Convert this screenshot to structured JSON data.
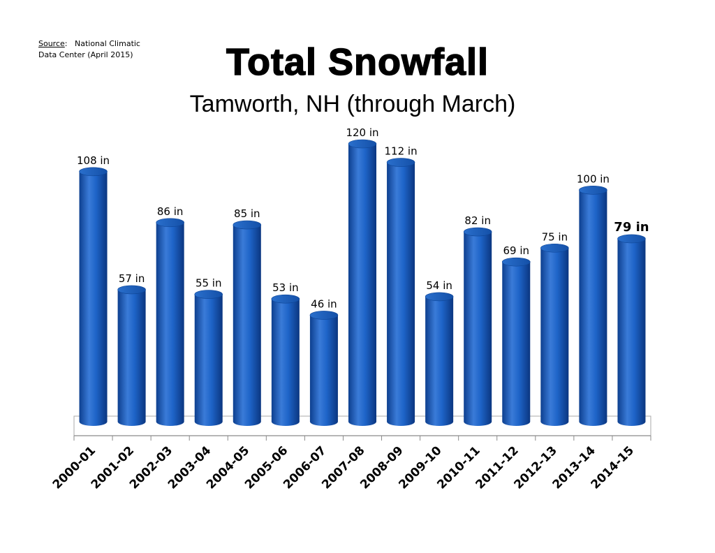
{
  "source": {
    "label": "Source",
    "line1": "National Climatic",
    "line2": "Data Center  (April 2015)"
  },
  "chart_data": {
    "type": "bar",
    "title": "Total Snowfall",
    "subtitle": "Tamworth, NH (through March)",
    "categories": [
      "2000-01",
      "2001-02",
      "2002-03",
      "2003-04",
      "2004-05",
      "2005-06",
      "2006-07",
      "2007-08",
      "2008-09",
      "2009-10",
      "2010-11",
      "2011-12",
      "2012-13",
      "2013-14",
      "2014-15"
    ],
    "values": [
      108,
      57,
      86,
      55,
      85,
      53,
      46,
      120,
      112,
      54,
      82,
      69,
      75,
      100,
      79
    ],
    "data_labels": [
      "108 in",
      "57 in",
      "86 in",
      "55 in",
      "85 in",
      "53 in",
      "46 in",
      "120 in",
      "112 in",
      "54 in",
      "82 in",
      "69 in",
      "75 in",
      "100 in",
      "79 in"
    ],
    "highlight_index": 14,
    "ylim": [
      0,
      120
    ],
    "grid": false,
    "bar_color": "#1E64C8",
    "bar_dark": "#0D3F8F",
    "bar_light": "#4A8AE0"
  }
}
